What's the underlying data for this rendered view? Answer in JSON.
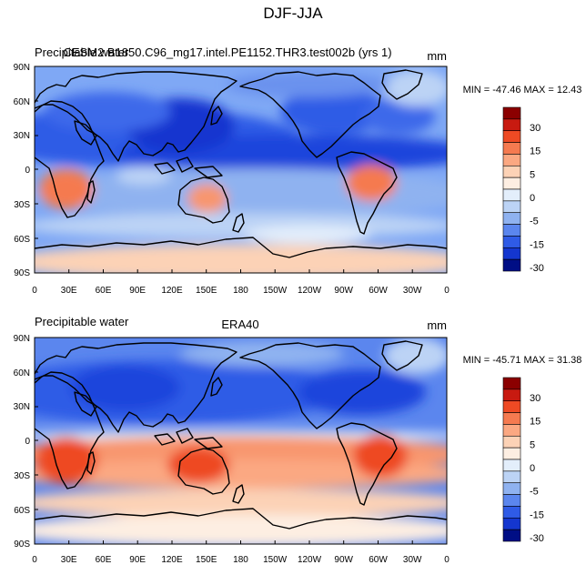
{
  "title": "DJF-JJA",
  "colors": {
    "ocean_base": "#7fa8f5",
    "land_base": "#5b86ee",
    "coast": "#000000"
  },
  "colorbar": {
    "labels": [
      "30",
      "15",
      "5",
      "0",
      "-5",
      "-15",
      "-30"
    ],
    "colors": [
      "#8b0000",
      "#c81a10",
      "#ee4a24",
      "#f57a50",
      "#fba882",
      "#fcd2b6",
      "#fdeee2",
      "#e3eefb",
      "#bcd3f5",
      "#8fb2f0",
      "#5b86ee",
      "#2f5be6",
      "#1436cf",
      "#000e85"
    ]
  },
  "axes": {
    "lat_ticks": [
      "90N",
      "60N",
      "30N",
      "0",
      "30S",
      "60S",
      "90S"
    ],
    "lon_ticks": [
      "0",
      "30E",
      "60E",
      "90E",
      "120E",
      "150E",
      "180",
      "150W",
      "120W",
      "90W",
      "60W",
      "30W",
      "0"
    ]
  },
  "panels": [
    {
      "left_title": "Precipitable water",
      "center_title": "CESM2 B1850.C96_mg17.intel.PE1152.THR3.test002b (yrs 1)",
      "units": "mm",
      "min_max": "MIN = -47.46  MAX =  12.43"
    },
    {
      "left_title": "Precipitable water",
      "center_title": "ERA40",
      "units": "mm",
      "min_max": "MIN = -45.71  MAX =  31.38"
    }
  ]
}
